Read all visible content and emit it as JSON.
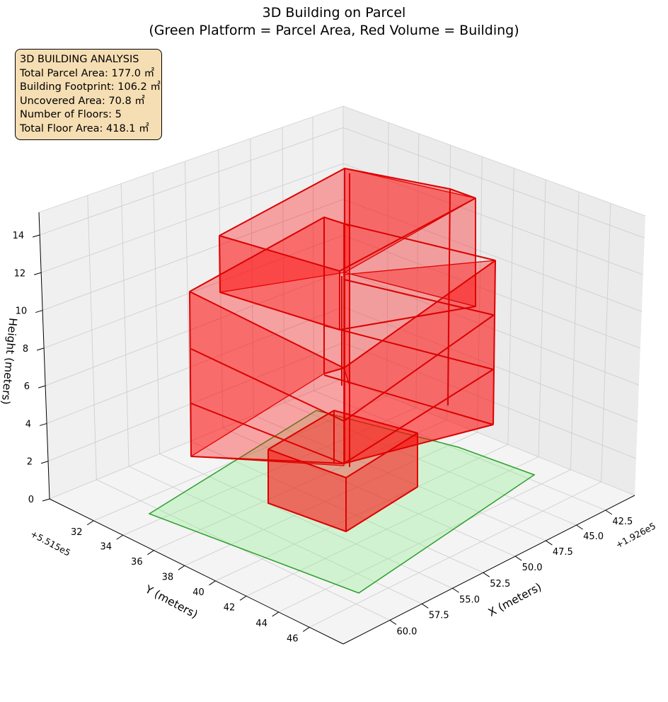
{
  "chart_data": {
    "type": "3d-polygon",
    "title_line1": "3D Building on Parcel",
    "title_line2": "(Green Platform = Parcel Area, Red Volume = Building)",
    "xlabel": "X (meters)",
    "ylabel": "Y (meters)",
    "zlabel": "Height (meters)",
    "x_offset_label": "+1.926e5",
    "y_offset_label": "+5.515e5",
    "x_ticks": [
      "42.5",
      "45.0",
      "47.5",
      "50.0",
      "52.5",
      "55.0",
      "57.5",
      "60.0"
    ],
    "y_ticks": [
      "32",
      "34",
      "36",
      "38",
      "40",
      "42",
      "44",
      "46"
    ],
    "z_ticks": [
      "0",
      "2",
      "4",
      "6",
      "8",
      "10",
      "12",
      "14"
    ],
    "parcel_color": "#2ca02c",
    "parcel_fill": "#90ee90",
    "building_color": "#ff0000",
    "info_lines": [
      "3D BUILDING ANALYSIS",
      "Total Parcel Area: 177.0 ㎡",
      "Building Footprint: 106.2 ㎡",
      "Uncovered Area: 70.8 ㎡",
      "Number of Floors: 5",
      "Total Floor Area: 418.1 ㎡"
    ]
  }
}
